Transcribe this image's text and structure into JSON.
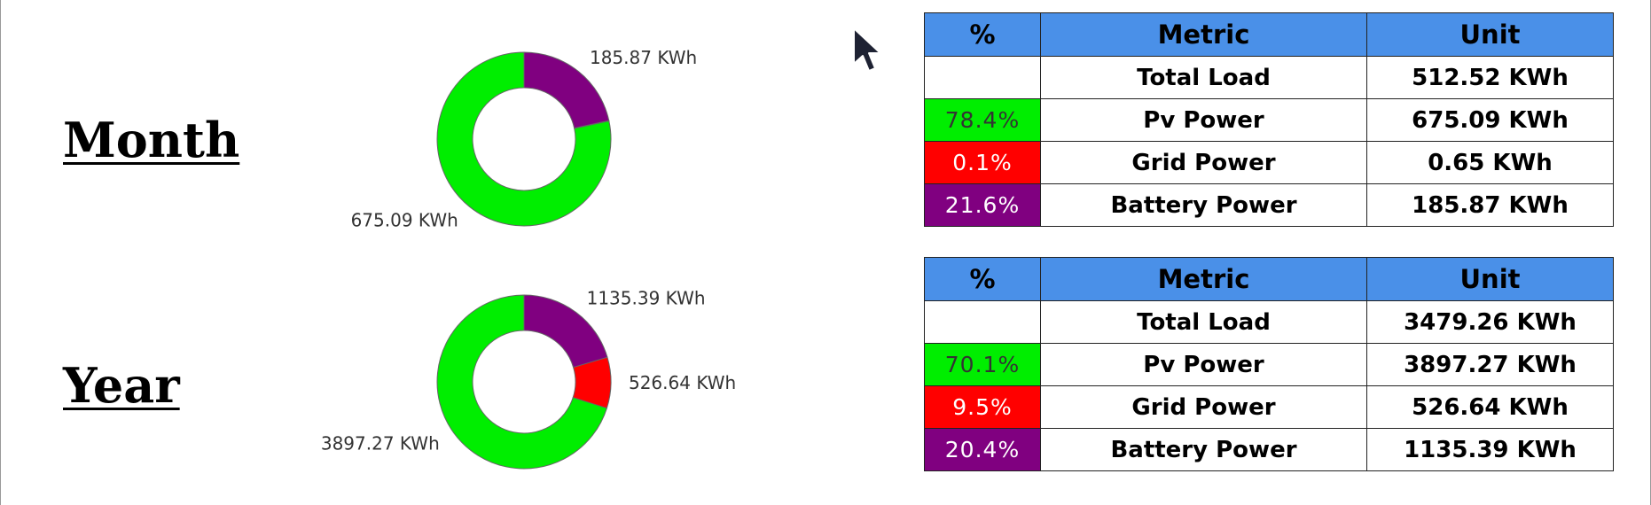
{
  "colors": {
    "pv": "#00ee00",
    "grid": "#ff0000",
    "battery": "#800080",
    "header": "#4a90e8"
  },
  "labels": {
    "month": "Month",
    "year": "Year"
  },
  "chart_data": [
    {
      "type": "pie",
      "variant": "donut",
      "period": "Month",
      "slices": [
        {
          "label": "675.09 KWh",
          "value": 675.09,
          "color": "#00ee00"
        },
        {
          "label": "0.65 KWh",
          "value": 0.65,
          "color": "#ff0000",
          "show_label": false
        },
        {
          "label": "185.87 KWh",
          "value": 185.87,
          "color": "#800080"
        }
      ]
    },
    {
      "type": "pie",
      "variant": "donut",
      "period": "Year",
      "slices": [
        {
          "label": "3897.27 KWh",
          "value": 3897.27,
          "color": "#00ee00"
        },
        {
          "label": "526.64 KWh",
          "value": 526.64,
          "color": "#ff0000"
        },
        {
          "label": "1135.39 KWh",
          "value": 1135.39,
          "color": "#800080"
        }
      ]
    }
  ],
  "tables": {
    "month": {
      "headers": [
        "%",
        "Metric",
        "Unit"
      ],
      "rows": [
        {
          "pct": "",
          "metric": "Total Load",
          "unit": "512.52 KWh"
        },
        {
          "pct": "78.4%",
          "metric": "Pv Power",
          "unit": "675.09 KWh"
        },
        {
          "pct": "0.1%",
          "metric": "Grid Power",
          "unit": "0.65 KWh"
        },
        {
          "pct": "21.6%",
          "metric": "Battery Power",
          "unit": "185.87 KWh"
        }
      ]
    },
    "year": {
      "headers": [
        "%",
        "Metric",
        "Unit"
      ],
      "rows": [
        {
          "pct": "",
          "metric": "Total Load",
          "unit": "3479.26 KWh"
        },
        {
          "pct": "70.1%",
          "metric": "Pv Power",
          "unit": "3897.27 KWh"
        },
        {
          "pct": "9.5%",
          "metric": "Grid Power",
          "unit": "526.64 KWh"
        },
        {
          "pct": "20.4%",
          "metric": "Battery Power",
          "unit": "1135.39 KWh"
        }
      ]
    }
  }
}
